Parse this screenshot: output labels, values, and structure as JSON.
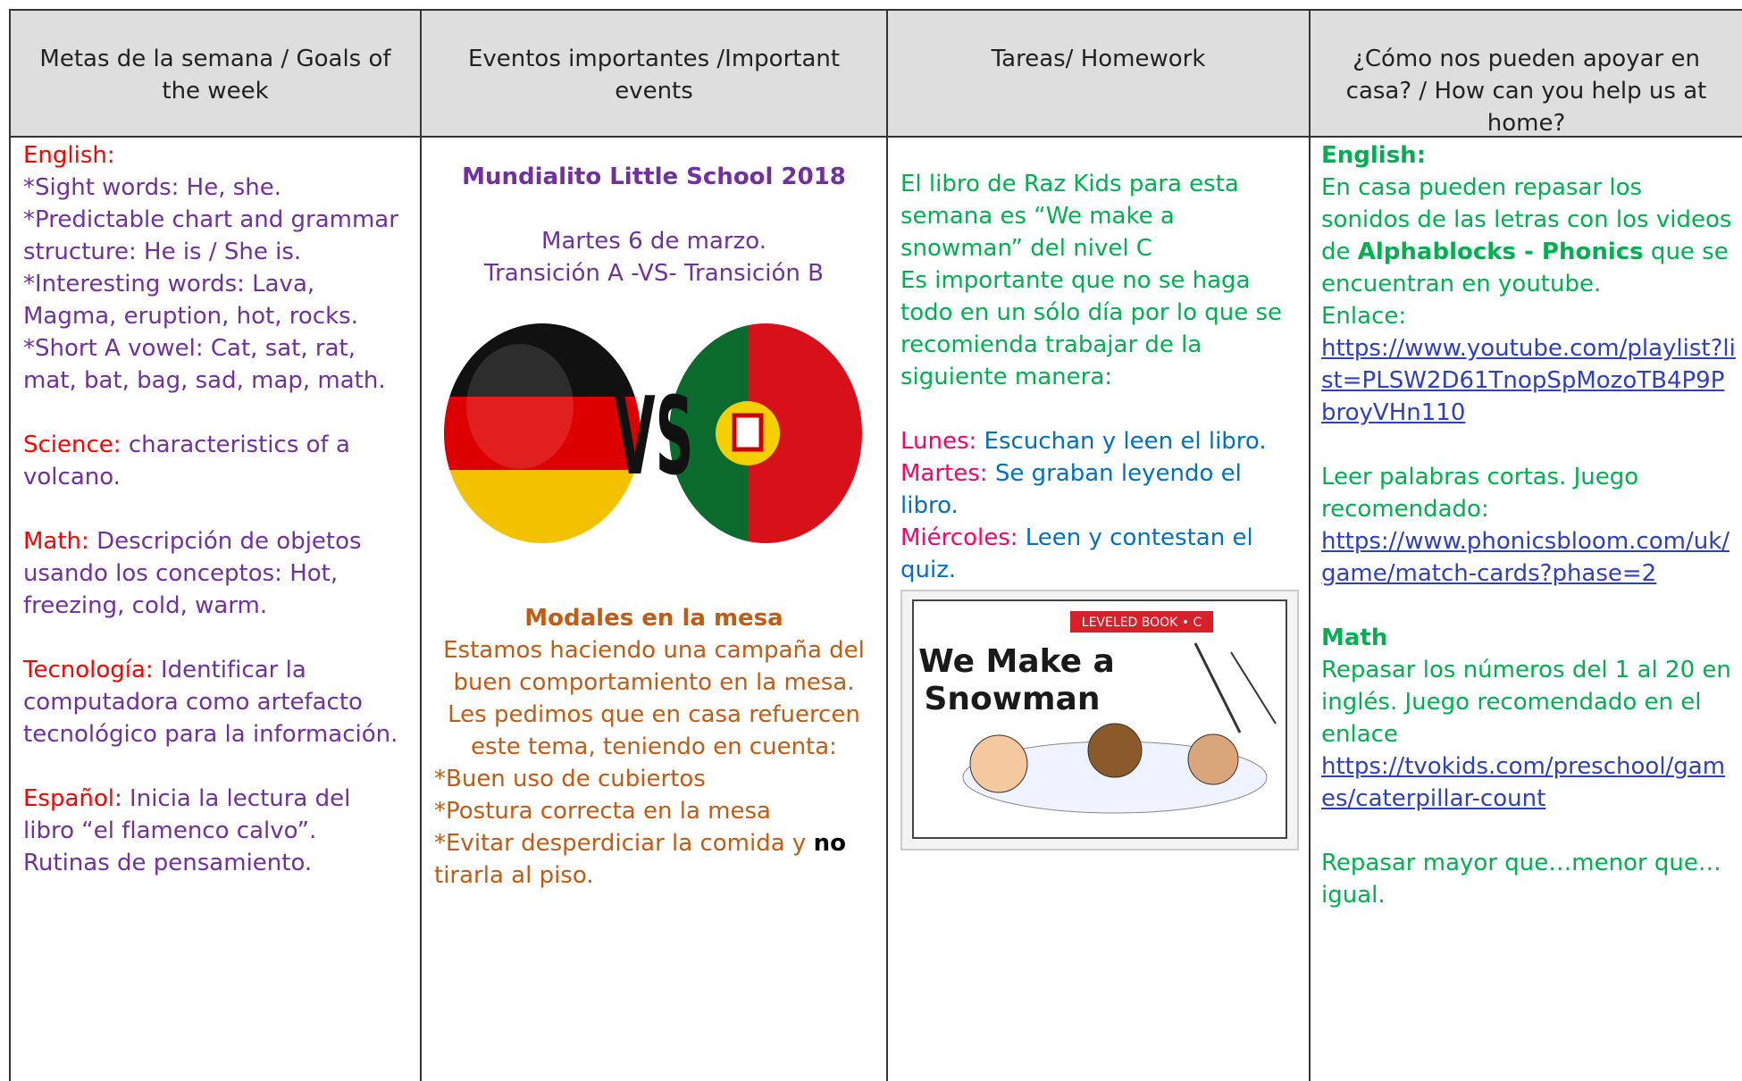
{
  "columns": [
    {
      "header": "Metas de la semana / Goals of the week",
      "content": [
        [
          {
            "runs": [
              {
                "text": "English:",
                "color": "#ff0000"
              }
            ]
          },
          {
            "runs": [
              {
                "text": "*Sight words: He, she.",
                "color": "#7030a0"
              }
            ]
          },
          {
            "runs": [
              {
                "text": "*Predictable chart and grammar structure",
                "color": "#7030a0"
              },
              {
                "text": ": He is / She is.",
                "color": "#7030a0"
              }
            ]
          },
          {
            "runs": [
              {
                "text": "*Interesting words: Lava, Magma, eruption, hot, rocks.",
                "color": "#7030a0"
              }
            ]
          },
          {
            "runs": [
              {
                "text": "*Short A vowel: Cat, sat, rat, mat, bat, bag, sad, map, math.",
                "color": "#7030a0"
              }
            ]
          }
        ],
        [
          {
            "runs": [
              {
                "text": "Science:",
                "color": "#ff0000"
              },
              {
                "text": " characteristics of a volcano.",
                "color": "#7030a0"
              }
            ]
          }
        ],
        [
          {
            "runs": [
              {
                "text": "Math:",
                "color": "#ff0000"
              },
              {
                "text": " Descripción de objetos usando los conceptos: Hot, freezing, cold, warm.",
                "color": "#7030a0"
              }
            ]
          }
        ],
        [
          {
            "runs": [
              {
                "text": "Tecnología:",
                "color": "#ff0000"
              },
              {
                "text": " Identificar la computadora como artefacto tecnológico para la información.",
                "color": "#7030a0"
              }
            ]
          }
        ],
        [
          {
            "runs": [
              {
                "text": "Español:",
                "color": "#ff0000"
              },
              {
                "text": " Inicia la lectura del libro “el flamenco calvo”.",
                "color": "#7030a0"
              }
            ]
          },
          {
            "runs": [
              {
                "text": "Rutinas de pensamiento.",
                "color": "#7030a0"
              }
            ]
          }
        ]
      ]
    },
    {
      "header": "Eventos importantes /Important events",
      "content": [
        [
          {
            "align": "center",
            "runs": [
              {
                "text": "Mundialito Little School 2018",
                "color": "#7030a0",
                "bold": true
              }
            ]
          }
        ],
        [
          {
            "align": "center",
            "runs": [
              {
                "text": "Martes 6 de marzo.",
                "color": "#7030a0"
              }
            ]
          },
          {
            "align": "center",
            "runs": [
              {
                "text": "Transición A -VS- Transición B",
                "color": "#7030a0"
              }
            ]
          }
        ]
      ],
      "image": {
        "text": "VS"
      },
      "content_below_image": [
        [
          {
            "align": "center",
            "runs": [
              {
                "text": "Modales en la mesa",
                "color": "#c55a11",
                "bold": true
              }
            ]
          },
          {
            "align": "center",
            "runs": [
              {
                "text": "Estamos haciendo una campaña del buen comportamiento en la mesa. Les pedimos que en casa refuercen este tema, teniendo en cuenta:",
                "color": "#c55a11"
              }
            ]
          },
          {
            "runs": [
              {
                "text": "*Buen uso de cubiertos",
                "color": "#c55a11"
              }
            ]
          },
          {
            "runs": [
              {
                "text": "*Postura correcta en la mesa",
                "color": "#c55a11"
              }
            ]
          },
          {
            "runs": [
              {
                "text": "*Evitar desperdiciar la comida y ",
                "color": "#c55a11"
              },
              {
                "text": "no",
                "color": "#000000",
                "bold": true
              },
              {
                "text": " tirarla al piso.",
                "color": "#c55a11"
              }
            ]
          }
        ]
      ]
    },
    {
      "header": "Tareas/ Homework",
      "content": [
        [
          {
            "runs": [
              {
                "text": "El libro de Raz Kids para esta semana es “We make a snowman” del nivel C",
                "color": "#00b050"
              }
            ]
          },
          {
            "runs": [
              {
                "text": "Es importante que no se haga todo en un sólo día por lo que se recomienda trabajar de la siguiente manera:",
                "color": "#00b050"
              }
            ]
          }
        ],
        [
          {
            "runs": [
              {
                "text": "Lunes:",
                "color": "#ff0066"
              },
              {
                "text": " Escuchan y leen el libro.",
                "color": "#0070c0"
              }
            ]
          },
          {
            "runs": [
              {
                "text": "Martes:",
                "color": "#ff0066"
              },
              {
                "text": " Se graban leyendo el libro.",
                "color": "#0070c0"
              }
            ]
          },
          {
            "runs": [
              {
                "text": "Miércoles:",
                "color": "#ff0066"
              },
              {
                "text": " Leen y contestan el quiz.",
                "color": "#0070c0"
              }
            ]
          }
        ]
      ],
      "image": {
        "label": "LEVELED BOOK • C",
        "title_lines": [
          "We Make a",
          "Snowman"
        ]
      }
    },
    {
      "header": "¿Cómo nos pueden apoyar en casa? / How can you help us at home?",
      "content": [
        [
          {
            "runs": [
              {
                "text": "English:",
                "color": "#00b050",
                "bold": true
              }
            ]
          },
          {
            "runs": [
              {
                "text": "En casa pueden repasar los sonidos de las letras con los videos de ",
                "color": "#00b050"
              },
              {
                "text": "Alphablocks - Phonics",
                "color": "#00b050",
                "bold": true
              },
              {
                "text": " que se encuentran en youtube.",
                "color": "#00b050"
              }
            ]
          },
          {
            "runs": [
              {
                "text": "Enlace:",
                "color": "#00b050"
              }
            ]
          },
          {
            "runs": [
              {
                "text": "https://www.youtube.com/playlist?list=PLSW2D61TnopSpMozoTB4P9PbroyVHn110",
                "color": "#2e3fbf",
                "link": true
              }
            ]
          }
        ],
        [
          {
            "runs": [
              {
                "text": "Leer palabras cortas. Juego recomendado:",
                "color": "#00b050"
              }
            ]
          },
          {
            "runs": [
              {
                "text": "https://www.phonicsbloom.com/uk/game/match-cards?phase=2",
                "color": "#2e3fbf",
                "link": true
              }
            ]
          }
        ],
        [
          {
            "runs": [
              {
                "text": "Math",
                "color": "#00b050",
                "bold": true
              }
            ]
          },
          {
            "runs": [
              {
                "text": "Repasar los números del 1 al 20 en inglés. Juego recomendado en el enlace",
                "color": "#00b050"
              }
            ]
          },
          {
            "runs": [
              {
                "text": "https://tvokids.com/preschool/games/caterpillar-count",
                "color": "#2e3fbf",
                "link": true
              }
            ]
          }
        ],
        [
          {
            "runs": [
              {
                "text": " Repasar mayor que…menor que… igual.",
                "color": "#00b050"
              }
            ]
          }
        ]
      ]
    }
  ]
}
